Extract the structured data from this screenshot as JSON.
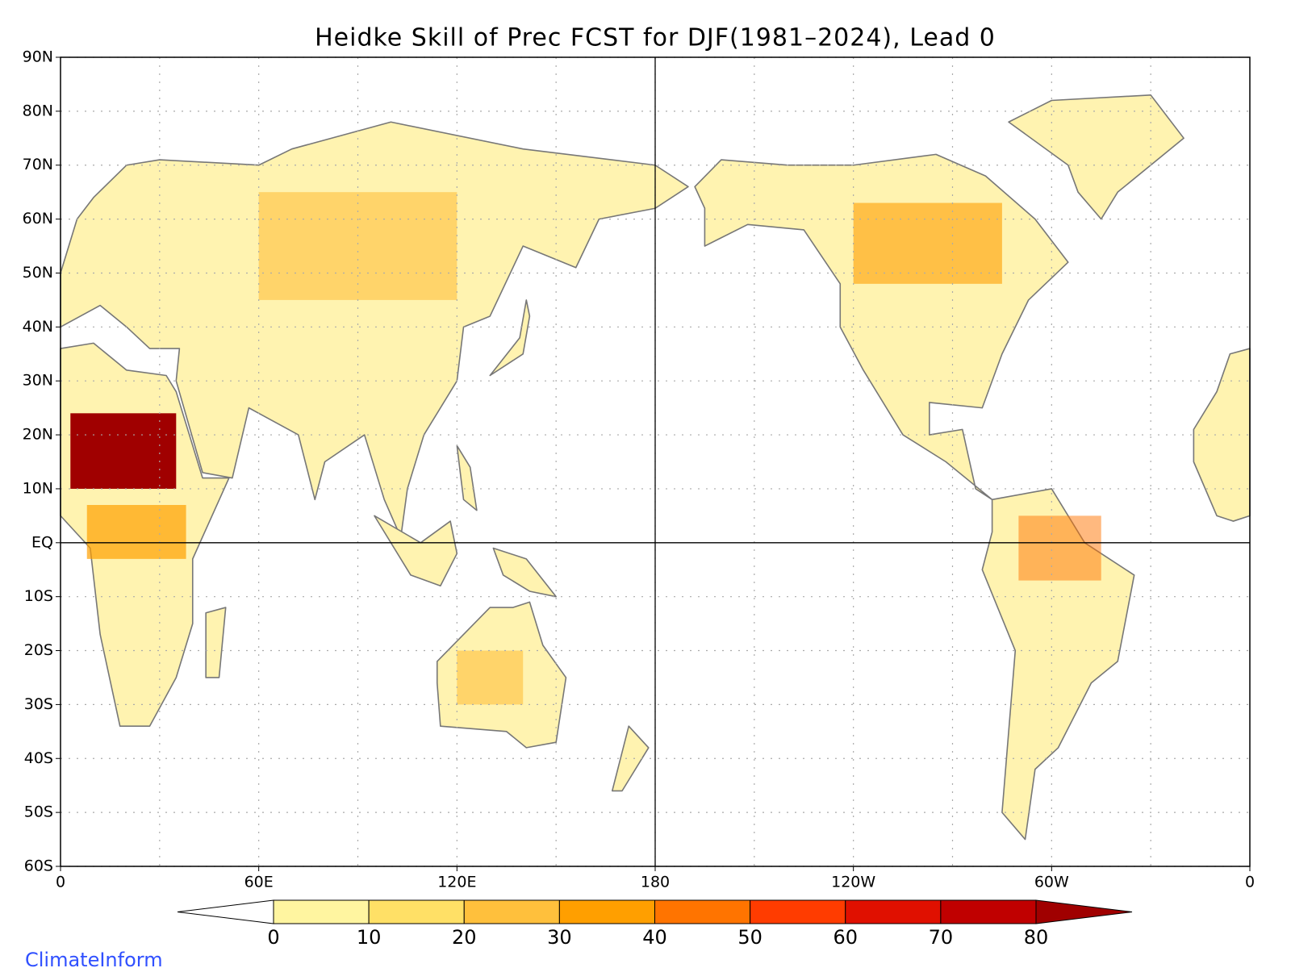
{
  "title": "Heidke Skill of Prec FCST for DJF(1981–2024), Lead 0",
  "map": {
    "lon_range": [
      0,
      360
    ],
    "lat_range": [
      -60,
      90
    ],
    "lat_ticks": [
      {
        "value": 90,
        "label": "90N"
      },
      {
        "value": 80,
        "label": "80N"
      },
      {
        "value": 70,
        "label": "70N"
      },
      {
        "value": 60,
        "label": "60N"
      },
      {
        "value": 50,
        "label": "50N"
      },
      {
        "value": 40,
        "label": "40N"
      },
      {
        "value": 30,
        "label": "30N"
      },
      {
        "value": 20,
        "label": "20N"
      },
      {
        "value": 10,
        "label": "10N"
      },
      {
        "value": 0,
        "label": "EQ"
      },
      {
        "value": -10,
        "label": "10S"
      },
      {
        "value": -20,
        "label": "20S"
      },
      {
        "value": -30,
        "label": "30S"
      },
      {
        "value": -40,
        "label": "40S"
      },
      {
        "value": -50,
        "label": "50S"
      },
      {
        "value": -60,
        "label": "60S"
      }
    ],
    "lon_ticks": [
      {
        "value": 0,
        "label": "0"
      },
      {
        "value": 60,
        "label": "60E"
      },
      {
        "value": 120,
        "label": "120E"
      },
      {
        "value": 180,
        "label": "180"
      },
      {
        "value": 240,
        "label": "120W"
      },
      {
        "value": 300,
        "label": "60W"
      },
      {
        "value": 360,
        "label": "0"
      }
    ]
  },
  "colorbar": {
    "levels": [
      0,
      10,
      20,
      30,
      40,
      50,
      60,
      70,
      80
    ],
    "colors": [
      "#ffffff",
      "#fff5a0",
      "#ffe066",
      "#ffc03c",
      "#ff9f00",
      "#ff7400",
      "#ff3c00",
      "#e01000",
      "#c00000",
      "#a00000"
    ]
  },
  "credit": "ClimateInform"
}
